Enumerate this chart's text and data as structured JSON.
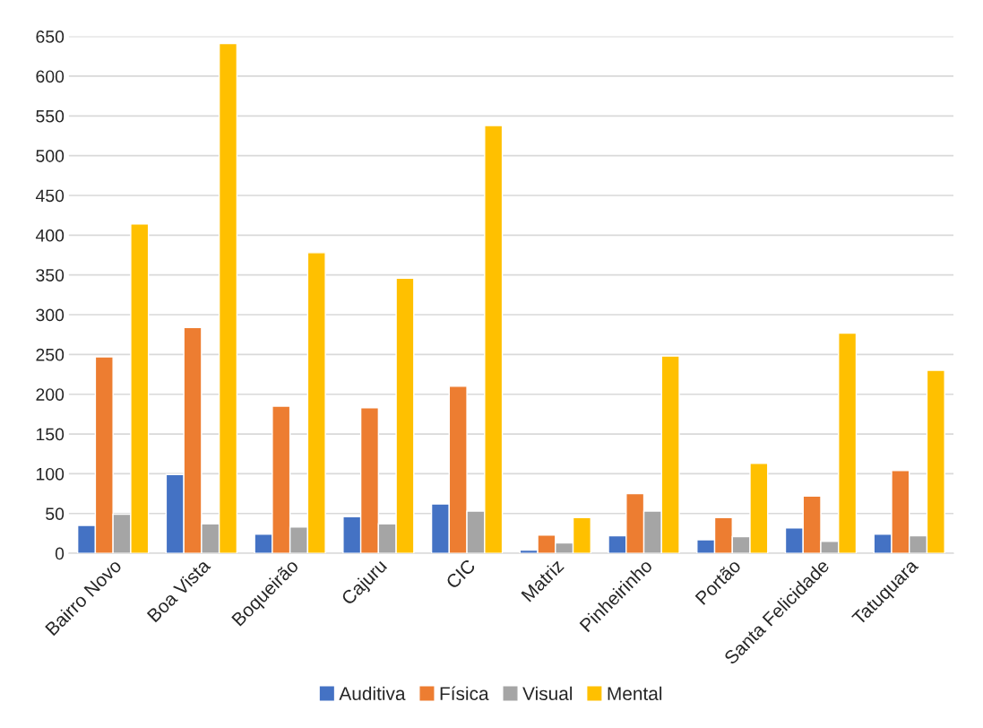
{
  "chart_data": {
    "type": "bar",
    "categories": [
      "Bairro Novo",
      "Boa Vista",
      "Boqueirão",
      "Cajuru",
      "CIC",
      "Matriz",
      "Pinheirinho",
      "Portão",
      "Santa Felicidade",
      "Tatuquara"
    ],
    "series": [
      {
        "name": "Auditiva",
        "color": "#4472c4",
        "values": [
          35,
          99,
          24,
          46,
          62,
          4,
          22,
          17,
          32,
          24
        ]
      },
      {
        "name": "Física",
        "color": "#ed7d31",
        "values": [
          247,
          284,
          185,
          183,
          210,
          23,
          75,
          45,
          72,
          104
        ]
      },
      {
        "name": "Visual",
        "color": "#a5a5a5",
        "values": [
          49,
          37,
          33,
          37,
          53,
          13,
          53,
          21,
          15,
          22
        ]
      },
      {
        "name": "Mental",
        "color": "#ffc000",
        "values": [
          414,
          641,
          378,
          346,
          538,
          45,
          248,
          113,
          277,
          230
        ]
      }
    ],
    "ylim": [
      0,
      650
    ],
    "yticks": [
      0,
      50,
      100,
      150,
      200,
      250,
      300,
      350,
      400,
      450,
      500,
      550,
      600,
      650
    ],
    "grid": "y",
    "legend": "bottom"
  }
}
